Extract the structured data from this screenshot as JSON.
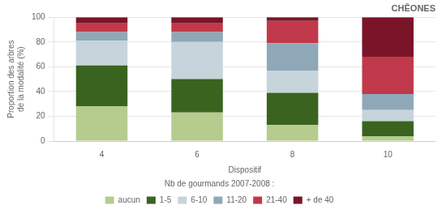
{
  "chart_data": {
    "type": "bar",
    "title": "CHÊONES",
    "xlabel": "Dispositif",
    "ylabel": "Proportion des arbres\nde la modalité (%)",
    "categories": [
      "4",
      "6",
      "8",
      "10"
    ],
    "series": [
      {
        "name": "aucun",
        "color": "#b5cc8e",
        "values": [
          28,
          23,
          13,
          4
        ]
      },
      {
        "name": "1-5",
        "color": "#3a6320",
        "values": [
          33,
          27,
          26,
          12
        ]
      },
      {
        "name": "6-10",
        "color": "#c5d5db",
        "values": [
          20,
          30,
          18,
          9
        ]
      },
      {
        "name": "11-20",
        "color": "#8fa8b8",
        "values": [
          7,
          8,
          22,
          13
        ]
      },
      {
        "name": "21-40",
        "color": "#c0394a",
        "values": [
          7,
          7,
          18,
          30
        ]
      },
      {
        "name": "+ de 40",
        "color": "#7a1428",
        "values": [
          5,
          5,
          3,
          32
        ]
      }
    ],
    "legend_title": "Nb de gourmands 2007-2008 :",
    "legend": "bottom",
    "stacked": true,
    "ylim": [
      0,
      100
    ],
    "yticks": [
      0,
      20,
      40,
      60,
      80,
      100
    ],
    "grid": true
  }
}
